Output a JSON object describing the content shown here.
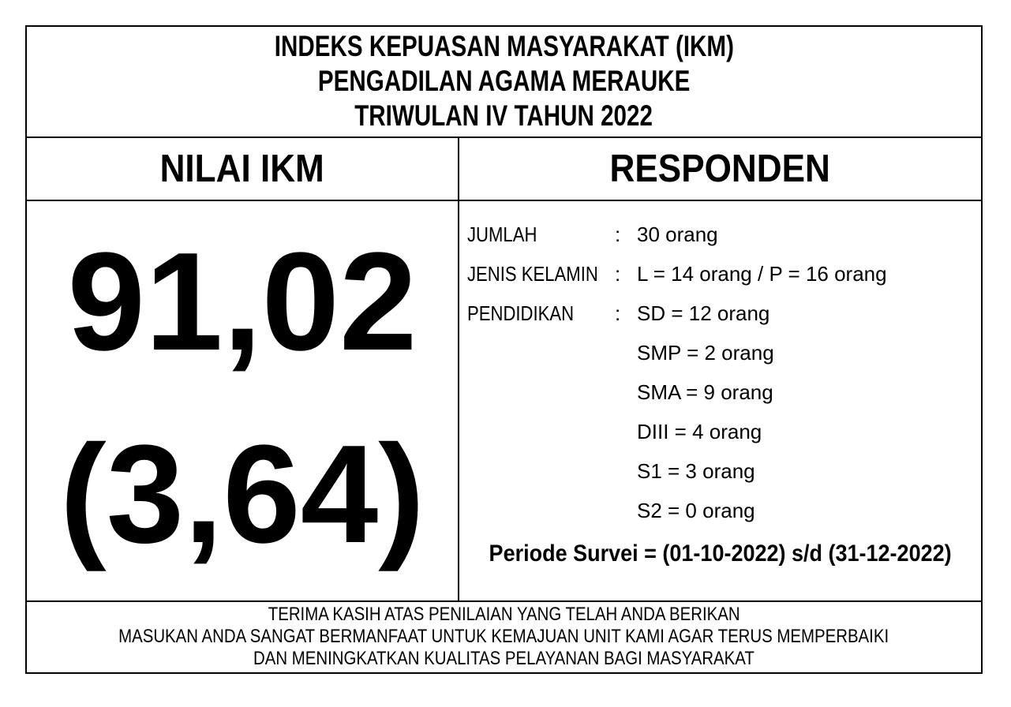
{
  "title": {
    "lines": [
      "INDEKS KEPUASAN MASYARAKAT (IKM)",
      "PENGADILAN AGAMA MERAUKE",
      "TRIWULAN IV TAHUN 2022"
    ]
  },
  "nilai_ikm": {
    "header": "NILAI IKM",
    "value_main": "91,02",
    "value_scale": "(3,64)"
  },
  "responden": {
    "header": "RESPONDEN",
    "rows": [
      {
        "label": "JUMLAH",
        "separator": ":",
        "value": "30 orang"
      },
      {
        "label": "JENIS KELAMIN",
        "separator": ":",
        "value": "L = 14 orang / P = 16 orang"
      },
      {
        "label": "PENDIDIKAN",
        "separator": ":",
        "value": "SD = 12 orang"
      },
      {
        "label": "",
        "separator": "",
        "value": "SMP = 2 orang"
      },
      {
        "label": "",
        "separator": "",
        "value": "SMA = 9 orang"
      },
      {
        "label": "",
        "separator": "",
        "value": "DIII = 4 orang"
      },
      {
        "label": "",
        "separator": "",
        "value": "S1 = 3 orang"
      },
      {
        "label": "",
        "separator": "",
        "value": "S2 = 0 orang"
      }
    ],
    "periode": "Periode Survei = (01-10-2022) s/d (31-12-2022)"
  },
  "footer": {
    "lines": [
      "TERIMA KASIH ATAS PENILAIAN YANG TELAH ANDA BERIKAN",
      "MASUKAN ANDA SANGAT BERMANFAAT UNTUK KEMAJUAN UNIT KAMI AGAR TERUS MEMPERBAIKI",
      "DAN MENINGKATKAN KUALITAS PELAYANAN BAGI MASYARAKAT"
    ]
  },
  "colors": {
    "text": "#000000",
    "background": "#ffffff",
    "border": "#000000"
  }
}
